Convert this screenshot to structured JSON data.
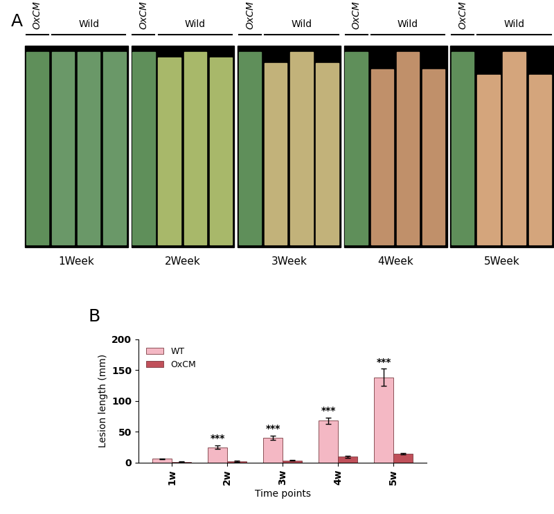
{
  "panel_a": {
    "label": "A",
    "groups": [
      {
        "treated": "OxCM",
        "control": "Wild",
        "caption": "1Week"
      },
      {
        "treated": "OxCM",
        "control": "Wild",
        "caption": "2Week"
      },
      {
        "treated": "OxCM",
        "control": "Wild",
        "caption": "3Week"
      },
      {
        "treated": "OxCM",
        "control": "Wild",
        "caption": "4Week"
      },
      {
        "treated": "OxCM",
        "control": "Wild",
        "caption": "5Week"
      }
    ]
  },
  "chart_data": {
    "type": "bar",
    "panel_label": "B",
    "x_label": "Time points",
    "y_label": "Lesion length (mm)",
    "categories": [
      "1w",
      "2w",
      "3w",
      "4w",
      "5w"
    ],
    "series": [
      {
        "name": "WT",
        "color": "#f4b8c4",
        "values": [
          6,
          25,
          40,
          68,
          138
        ],
        "errors": [
          1,
          3,
          3.5,
          5,
          14
        ]
      },
      {
        "name": "OxCM",
        "color": "#c0505a",
        "values": [
          1,
          2,
          3.5,
          9.5,
          14.5
        ],
        "errors": [
          0.5,
          1,
          0.7,
          2,
          1.5
        ]
      }
    ],
    "annotations": [
      null,
      "***",
      "***",
      "***",
      "***"
    ],
    "ylim": [
      0,
      200
    ],
    "yticks": [
      0,
      50,
      100,
      150,
      200
    ],
    "legend": "upper left",
    "grid": false
  }
}
